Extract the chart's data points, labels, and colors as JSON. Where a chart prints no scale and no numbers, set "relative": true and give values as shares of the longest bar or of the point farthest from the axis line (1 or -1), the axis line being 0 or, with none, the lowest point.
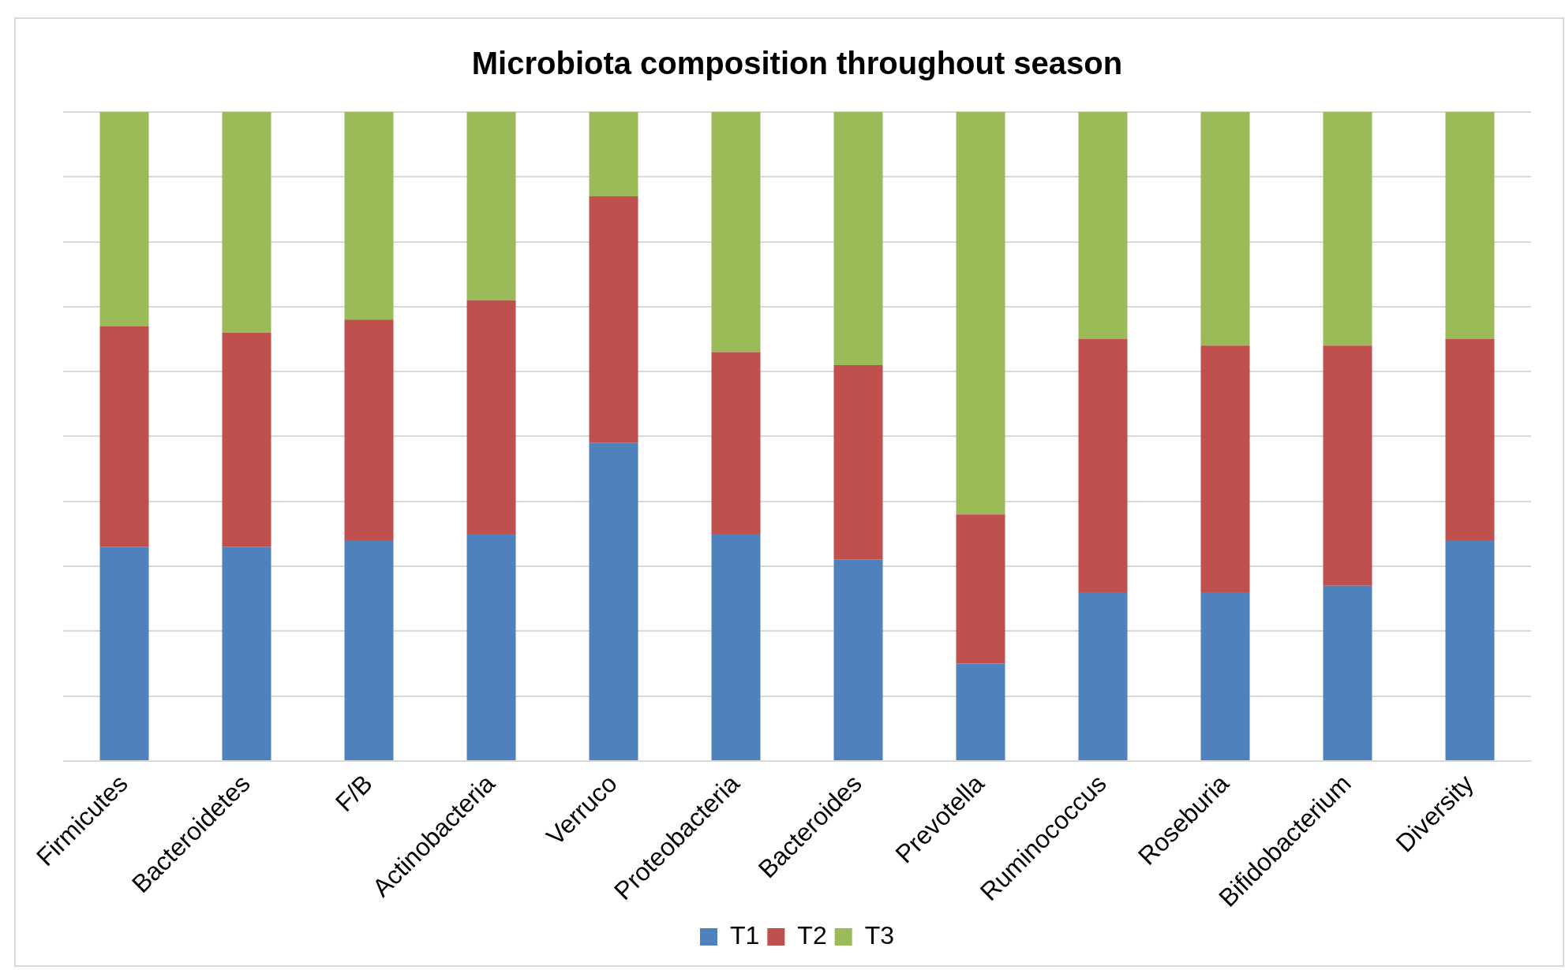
{
  "chart_data": {
    "type": "bar",
    "title": "Microbiota composition throughout season",
    "stacked": true,
    "relative": true,
    "grid": "y",
    "legend": "bottom",
    "categories": [
      "Firmicutes",
      "Bacteroidetes",
      "F/B",
      "Actinobacteria",
      "Verruco",
      "Proteobacteria",
      "Bacteroides",
      "Prevotella",
      "Ruminococcus",
      "Roseburia",
      "Bifidobacterium",
      "Diversity"
    ],
    "series": [
      {
        "name": "T1",
        "color": "#4f81bd",
        "values": [
          0.33,
          0.33,
          0.34,
          0.35,
          0.49,
          0.35,
          0.31,
          0.15,
          0.26,
          0.26,
          0.27,
          0.34
        ]
      },
      {
        "name": "T2",
        "color": "#c0504d",
        "values": [
          0.34,
          0.33,
          0.34,
          0.36,
          0.38,
          0.28,
          0.3,
          0.23,
          0.39,
          0.38,
          0.37,
          0.31
        ]
      },
      {
        "name": "T3",
        "color": "#9bbb59",
        "values": [
          0.33,
          0.34,
          0.32,
          0.29,
          0.13,
          0.37,
          0.39,
          0.62,
          0.35,
          0.36,
          0.36,
          0.35
        ]
      }
    ]
  }
}
